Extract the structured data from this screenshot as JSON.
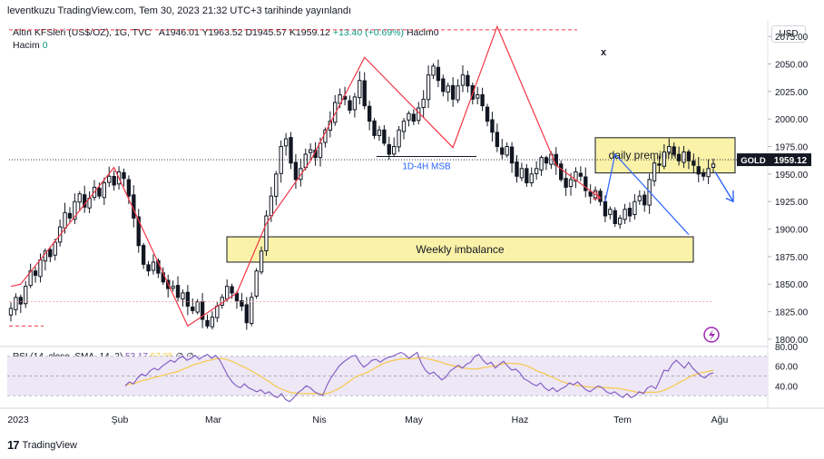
{
  "header": {
    "published": "leventkuzu TradingView.com, Tem 30, 2023 21:32 UTC+3 tarihinde yayınlandı"
  },
  "legend": {
    "symbol_line": "Altın KFSleri (US$/OZ), 1G, TVC",
    "open": "A1946.01",
    "high": "Y1963.52",
    "low": "D1945.57",
    "close": "K1959.12",
    "change": "+13.40 (+0.69%)",
    "volume_label": "Hacim0",
    "volume_row_label": "Hacim",
    "volume_row_value": "0"
  },
  "currency_button": "USD",
  "close_marker": "x",
  "price_badge": {
    "symbol": "GOLD",
    "value": "1959.12"
  },
  "rsi": {
    "label": "RSI (14, close, SMA, 14, 2)",
    "rsi_value": "53.17",
    "sma_value": "57.05",
    "extra": "∅  ∅"
  },
  "footer": {
    "brand": "TradingView",
    "logo": "17"
  },
  "colors": {
    "up": "#089981",
    "zone_fill": "#faf2a8",
    "zone_stroke": "#131722",
    "red_line": "#f23645",
    "blue_line": "#2962ff",
    "rsi": "#7e57c2",
    "rsi_sma": "#f7c948",
    "rsi_band": "#ede7f6",
    "lightning": "#9c27b0"
  },
  "chart_data": {
    "type": "candlestick",
    "symbol": "GOLD",
    "y_axis": {
      "ticks": [
        2075,
        2050,
        2025,
        2000,
        1975,
        1950,
        1925,
        1900,
        1875,
        1850,
        1825,
        1800
      ],
      "range": [
        1795,
        2085
      ]
    },
    "x_axis": {
      "labels": [
        "2023",
        "Şub",
        "Mar",
        "Nis",
        "May",
        "Haz",
        "Tem",
        "Ağu"
      ]
    },
    "close_series": [
      1828,
      1838,
      1832,
      1848,
      1862,
      1858,
      1872,
      1880,
      1875,
      1888,
      1902,
      1915,
      1910,
      1925,
      1932,
      1920,
      1928,
      1938,
      1930,
      1942,
      1948,
      1940,
      1952,
      1946,
      1930,
      1910,
      1885,
      1868,
      1862,
      1870,
      1860,
      1852,
      1846,
      1848,
      1838,
      1842,
      1830,
      1826,
      1834,
      1818,
      1812,
      1820,
      1830,
      1838,
      1848,
      1842,
      1835,
      1830,
      1815,
      1838,
      1862,
      1880,
      1912,
      1930,
      1950,
      1975,
      1982,
      1960,
      1945,
      1955,
      1968,
      1972,
      1965,
      1978,
      1990,
      1998,
      2015,
      2022,
      2018,
      2008,
      2020,
      2035,
      2012,
      1998,
      1985,
      1990,
      1978,
      1968,
      1975,
      1990,
      1998,
      2005,
      1998,
      2010,
      2018,
      2040,
      2048,
      2035,
      2025,
      2030,
      2018,
      2030,
      2040,
      2030,
      2018,
      2022,
      2012,
      1998,
      1988,
      1975,
      1968,
      1975,
      1960,
      1948,
      1955,
      1942,
      1950,
      1955,
      1965,
      1960,
      1968,
      1958,
      1945,
      1938,
      1945,
      1952,
      1948,
      1935,
      1930,
      1935,
      1925,
      1912,
      1918,
      1905,
      1910,
      1918,
      1912,
      1925,
      1930,
      1922,
      1945,
      1960,
      1958,
      1970,
      1975,
      1968,
      1962,
      1970,
      1962,
      1958,
      1950,
      1948,
      1955,
      1959.12
    ],
    "rsi": {
      "range": [
        20,
        80
      ],
      "ticks": [
        80,
        60,
        40
      ],
      "dashed_levels": [
        70,
        50,
        30
      ],
      "values": [
        40,
        44,
        42,
        48,
        52,
        50,
        55,
        58,
        56,
        60,
        63,
        66,
        64,
        68,
        70,
        66,
        68,
        71,
        67,
        70,
        72,
        68,
        71,
        66,
        58,
        50,
        44,
        40,
        38,
        42,
        38,
        36,
        34,
        36,
        32,
        34,
        30,
        28,
        32,
        26,
        24,
        28,
        33,
        36,
        40,
        38,
        34,
        32,
        30,
        40,
        48,
        54,
        60,
        64,
        67,
        70,
        71,
        64,
        59,
        62,
        66,
        67,
        64,
        67,
        69,
        70,
        72,
        74,
        72,
        68,
        71,
        74,
        63,
        56,
        52,
        54,
        50,
        46,
        49,
        55,
        58,
        61,
        58,
        62,
        64,
        70,
        72,
        66,
        62,
        64,
        58,
        62,
        65,
        60,
        56,
        57,
        53,
        47,
        45,
        42,
        40,
        43,
        38,
        35,
        38,
        34,
        37,
        39,
        43,
        41,
        44,
        40,
        36,
        34,
        37,
        40,
        38,
        34,
        32,
        34,
        31,
        28,
        32,
        28,
        30,
        34,
        32,
        38,
        40,
        37,
        46,
        56,
        55,
        62,
        66,
        62,
        58,
        64,
        58,
        54,
        50,
        48,
        52,
        53.17
      ]
    },
    "annotations": [
      {
        "type": "zone",
        "label": "Weekly imbalance",
        "y_range": [
          1870,
          1893
        ]
      },
      {
        "type": "zone",
        "label": "daily premium",
        "y_range": [
          1951,
          1983
        ]
      },
      {
        "type": "line_label",
        "label": "1D-4H MSB",
        "y": 1966
      }
    ]
  }
}
